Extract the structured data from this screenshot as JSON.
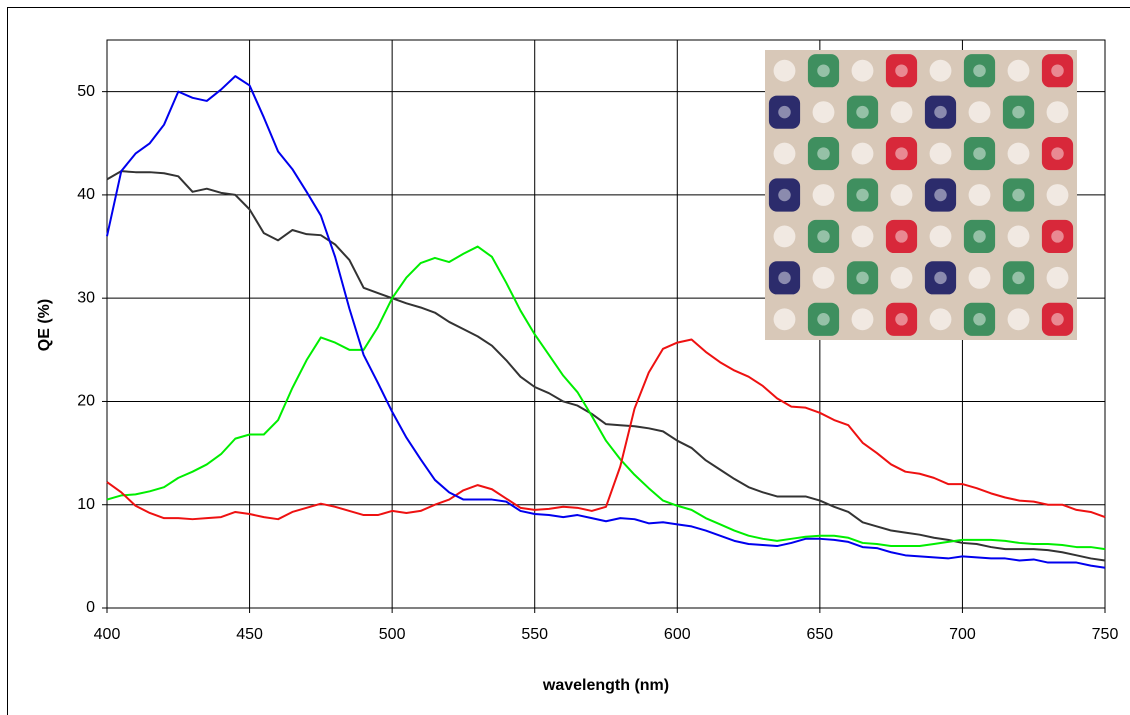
{
  "chart_data": {
    "type": "line",
    "x_label": "wavelength (nm)",
    "y_label": "QE (%)",
    "x": [
      400,
      405,
      410,
      415,
      420,
      425,
      430,
      435,
      440,
      445,
      450,
      455,
      460,
      465,
      470,
      475,
      480,
      485,
      490,
      495,
      500,
      505,
      510,
      515,
      520,
      525,
      530,
      535,
      540,
      545,
      550,
      555,
      560,
      565,
      570,
      575,
      580,
      585,
      590,
      595,
      600,
      605,
      610,
      615,
      620,
      625,
      630,
      635,
      640,
      645,
      650,
      655,
      660,
      665,
      670,
      675,
      680,
      685,
      690,
      695,
      700,
      705,
      710,
      715,
      720,
      725,
      730,
      735,
      740,
      745,
      750
    ],
    "series": [
      {
        "color": "#333333",
        "values": [
          41.5,
          42.3,
          42.2,
          42.2,
          42.1,
          41.8,
          40.3,
          40.6,
          40.2,
          40,
          38.6,
          36.3,
          35.6,
          36.6,
          36.2,
          36.1,
          35.2,
          33.7,
          31,
          30.5,
          30,
          29.5,
          29.1,
          28.6,
          27.7,
          27,
          26.3,
          25.4,
          24,
          22.4,
          21.4,
          20.8,
          20,
          19.6,
          18.8,
          17.8,
          17.7,
          17.6,
          17.4,
          17.1,
          16.2,
          15.5,
          14.3,
          13.4,
          12.5,
          11.7,
          11.2,
          10.8,
          10.8,
          10.8,
          10.4,
          9.8,
          9.3,
          8.3,
          7.9,
          7.5,
          7.3,
          7.1,
          6.8,
          6.6,
          6.3,
          6.2,
          5.9,
          5.7,
          5.7,
          5.7,
          5.6,
          5.4,
          5.1,
          4.8,
          4.6
        ]
      },
      {
        "color": "#00ee00",
        "values": [
          10.5,
          10.9,
          11,
          11.3,
          11.7,
          12.6,
          13.2,
          13.9,
          14.9,
          16.4,
          16.8,
          16.8,
          18.2,
          21.3,
          24,
          26.2,
          25.7,
          25,
          25,
          27.2,
          30,
          32,
          33.4,
          33.9,
          33.5,
          34.3,
          35,
          34,
          31.5,
          28.8,
          26.5,
          24.5,
          22.5,
          20.9,
          18.6,
          16.2,
          14.4,
          12.9,
          11.6,
          10.4,
          9.9,
          9.5,
          8.7,
          8.1,
          7.5,
          7,
          6.7,
          6.5,
          6.7,
          6.9,
          7,
          7,
          6.8,
          6.3,
          6.2,
          6,
          6,
          6,
          6.2,
          6.4,
          6.6,
          6.6,
          6.6,
          6.5,
          6.3,
          6.2,
          6.2,
          6.1,
          5.9,
          5.9,
          5.7
        ]
      },
      {
        "color": "#ee1111",
        "values": [
          12.2,
          11.2,
          9.9,
          9.2,
          8.7,
          8.7,
          8.6,
          8.7,
          8.8,
          9.3,
          9.1,
          8.8,
          8.6,
          9.3,
          9.7,
          10.1,
          9.8,
          9.4,
          9,
          9,
          9.4,
          9.2,
          9.4,
          10,
          10.5,
          11.4,
          11.9,
          11.5,
          10.6,
          9.7,
          9.5,
          9.6,
          9.8,
          9.7,
          9.4,
          9.8,
          13.7,
          19.3,
          22.8,
          25.1,
          25.7,
          26,
          24.8,
          23.8,
          23,
          22.4,
          21.5,
          20.3,
          19.5,
          19.4,
          18.9,
          18.2,
          17.7,
          16,
          15,
          13.9,
          13.2,
          13,
          12.6,
          12,
          12,
          11.6,
          11.1,
          10.7,
          10.4,
          10.3,
          10,
          10,
          9.5,
          9.3,
          8.8
        ]
      },
      {
        "color": "#0000ee",
        "values": [
          36,
          42.3,
          44,
          45,
          46.8,
          50,
          49.4,
          49.1,
          50.2,
          51.5,
          50.6,
          47.5,
          44.2,
          42.5,
          40.3,
          38,
          34,
          29,
          24.5,
          21.8,
          19,
          16.5,
          14.4,
          12.4,
          11.2,
          10.5,
          10.5,
          10.5,
          10.3,
          9.4,
          9.1,
          9,
          8.8,
          9,
          8.7,
          8.4,
          8.7,
          8.6,
          8.2,
          8.3,
          8.1,
          7.9,
          7.5,
          7,
          6.5,
          6.2,
          6.1,
          6,
          6.3,
          6.7,
          6.7,
          6.6,
          6.4,
          5.9,
          5.8,
          5.4,
          5.1,
          5,
          4.9,
          4.8,
          5,
          4.9,
          4.8,
          4.8,
          4.6,
          4.7,
          4.4,
          4.4,
          4.4,
          4.1,
          3.9
        ]
      }
    ],
    "xlim": [
      400,
      750
    ],
    "xticks": [
      400,
      450,
      500,
      550,
      600,
      650,
      700,
      750
    ],
    "ylim": [
      0,
      55
    ],
    "yticks": [
      0,
      10,
      20,
      30,
      40,
      50
    ],
    "grid": true
  }
}
